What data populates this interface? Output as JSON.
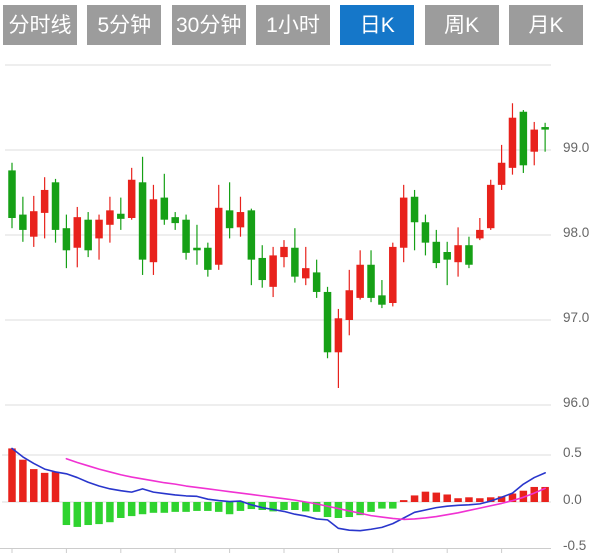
{
  "tabs": [
    {
      "label": "分时线",
      "active": false
    },
    {
      "label": "5分钟",
      "active": false
    },
    {
      "label": "30分钟",
      "active": false
    },
    {
      "label": "1小时",
      "active": false
    },
    {
      "label": "日K",
      "active": true
    },
    {
      "label": "周K",
      "active": false
    },
    {
      "label": "月K",
      "active": false
    }
  ],
  "colors": {
    "tab_bg": "#9c9c9c",
    "tab_active_bg": "#1577c9",
    "tab_text": "#ffffff",
    "bull_red": "#e8221c",
    "bear_green": "#16a016",
    "macd_up_red": "#e8221c",
    "macd_down_green": "#2fd32f",
    "dif_line_blue": "#2936cc",
    "dea_line_magenta": "#f032d2",
    "grid": "#dedede",
    "axis": "#cccccc",
    "axis_text": "#666666"
  },
  "chart_data": {
    "type": "candlestick",
    "title": "",
    "subchart": "MACD",
    "price_axis": {
      "labels": [
        "99.0",
        "98.0",
        "97.0",
        "96.0"
      ],
      "label_values": [
        99.0,
        98.0,
        97.0,
        96.0
      ],
      "gridline_values": [
        100.0,
        99.0,
        98.0,
        97.0,
        96.0
      ],
      "range": [
        95.85,
        100.12
      ],
      "side": "right"
    },
    "macd_axis": {
      "labels": [
        "0.5",
        "0.0",
        "-0.5"
      ],
      "label_values": [
        0.5,
        0.0,
        -0.5
      ],
      "gridline_values": [
        0.5,
        0.0
      ],
      "range": [
        -0.5,
        0.5
      ],
      "side": "right"
    },
    "candles": [
      {
        "o": 98.76,
        "h": 98.85,
        "l": 98.08,
        "c": 98.2,
        "dir": "down"
      },
      {
        "o": 98.24,
        "h": 98.45,
        "l": 97.92,
        "c": 98.06,
        "dir": "down"
      },
      {
        "o": 97.98,
        "h": 98.46,
        "l": 97.86,
        "c": 98.28,
        "dir": "up"
      },
      {
        "o": 98.26,
        "h": 98.68,
        "l": 97.96,
        "c": 98.53,
        "dir": "up"
      },
      {
        "o": 98.62,
        "h": 98.66,
        "l": 97.91,
        "c": 98.06,
        "dir": "down"
      },
      {
        "o": 98.08,
        "h": 98.24,
        "l": 97.61,
        "c": 97.82,
        "dir": "down"
      },
      {
        "o": 97.85,
        "h": 98.33,
        "l": 97.62,
        "c": 98.21,
        "dir": "up"
      },
      {
        "o": 98.18,
        "h": 98.27,
        "l": 97.74,
        "c": 97.82,
        "dir": "down"
      },
      {
        "o": 97.96,
        "h": 98.24,
        "l": 97.71,
        "c": 98.18,
        "dir": "up"
      },
      {
        "o": 98.12,
        "h": 98.45,
        "l": 97.91,
        "c": 98.29,
        "dir": "up"
      },
      {
        "o": 98.25,
        "h": 98.44,
        "l": 98.06,
        "c": 98.19,
        "dir": "down"
      },
      {
        "o": 98.2,
        "h": 98.79,
        "l": 98.18,
        "c": 98.65,
        "dir": "up"
      },
      {
        "o": 98.62,
        "h": 98.92,
        "l": 97.53,
        "c": 97.71,
        "dir": "down"
      },
      {
        "o": 97.68,
        "h": 98.59,
        "l": 97.53,
        "c": 98.42,
        "dir": "up"
      },
      {
        "o": 98.44,
        "h": 98.72,
        "l": 98.12,
        "c": 98.18,
        "dir": "down"
      },
      {
        "o": 98.21,
        "h": 98.27,
        "l": 98.06,
        "c": 98.14,
        "dir": "down"
      },
      {
        "o": 98.18,
        "h": 98.24,
        "l": 97.71,
        "c": 97.79,
        "dir": "down"
      },
      {
        "o": 97.85,
        "h": 98.12,
        "l": 97.65,
        "c": 97.82,
        "dir": "down"
      },
      {
        "o": 97.85,
        "h": 97.91,
        "l": 97.51,
        "c": 97.59,
        "dir": "down"
      },
      {
        "o": 97.65,
        "h": 98.59,
        "l": 97.59,
        "c": 98.32,
        "dir": "up"
      },
      {
        "o": 98.29,
        "h": 98.62,
        "l": 97.96,
        "c": 98.08,
        "dir": "down"
      },
      {
        "o": 98.09,
        "h": 98.45,
        "l": 97.98,
        "c": 98.27,
        "dir": "up"
      },
      {
        "o": 98.29,
        "h": 98.31,
        "l": 97.41,
        "c": 97.71,
        "dir": "down"
      },
      {
        "o": 97.73,
        "h": 97.88,
        "l": 97.38,
        "c": 97.47,
        "dir": "down"
      },
      {
        "o": 97.39,
        "h": 97.86,
        "l": 97.27,
        "c": 97.76,
        "dir": "up"
      },
      {
        "o": 97.74,
        "h": 97.94,
        "l": 97.62,
        "c": 97.86,
        "dir": "up"
      },
      {
        "o": 97.85,
        "h": 98.08,
        "l": 97.44,
        "c": 97.51,
        "dir": "down"
      },
      {
        "o": 97.49,
        "h": 97.86,
        "l": 97.41,
        "c": 97.61,
        "dir": "up"
      },
      {
        "o": 97.56,
        "h": 97.71,
        "l": 97.26,
        "c": 97.33,
        "dir": "down"
      },
      {
        "o": 97.33,
        "h": 97.39,
        "l": 96.55,
        "c": 96.62,
        "dir": "down"
      },
      {
        "o": 96.62,
        "h": 97.13,
        "l": 96.2,
        "c": 97.02,
        "dir": "up"
      },
      {
        "o": 97.0,
        "h": 97.59,
        "l": 96.82,
        "c": 97.35,
        "dir": "up"
      },
      {
        "o": 97.26,
        "h": 97.82,
        "l": 97.24,
        "c": 97.65,
        "dir": "up"
      },
      {
        "o": 97.65,
        "h": 97.82,
        "l": 97.21,
        "c": 97.26,
        "dir": "down"
      },
      {
        "o": 97.29,
        "h": 97.47,
        "l": 97.14,
        "c": 97.18,
        "dir": "down"
      },
      {
        "o": 97.2,
        "h": 97.91,
        "l": 97.16,
        "c": 97.86,
        "dir": "up"
      },
      {
        "o": 97.85,
        "h": 98.59,
        "l": 97.68,
        "c": 98.44,
        "dir": "up"
      },
      {
        "o": 98.45,
        "h": 98.53,
        "l": 97.82,
        "c": 98.15,
        "dir": "down"
      },
      {
        "o": 98.15,
        "h": 98.24,
        "l": 97.76,
        "c": 97.91,
        "dir": "down"
      },
      {
        "o": 97.92,
        "h": 98.06,
        "l": 97.61,
        "c": 97.67,
        "dir": "down"
      },
      {
        "o": 97.8,
        "h": 97.92,
        "l": 97.41,
        "c": 97.71,
        "dir": "down"
      },
      {
        "o": 97.68,
        "h": 98.09,
        "l": 97.51,
        "c": 97.88,
        "dir": "up"
      },
      {
        "o": 97.88,
        "h": 97.98,
        "l": 97.61,
        "c": 97.65,
        "dir": "down"
      },
      {
        "o": 97.96,
        "h": 98.2,
        "l": 97.94,
        "c": 98.06,
        "dir": "up"
      },
      {
        "o": 98.08,
        "h": 98.65,
        "l": 98.06,
        "c": 98.59,
        "dir": "up"
      },
      {
        "o": 98.59,
        "h": 99.06,
        "l": 98.53,
        "c": 98.85,
        "dir": "up"
      },
      {
        "o": 98.79,
        "h": 99.55,
        "l": 98.71,
        "c": 99.38,
        "dir": "up"
      },
      {
        "o": 99.45,
        "h": 99.47,
        "l": 98.73,
        "c": 98.82,
        "dir": "down"
      },
      {
        "o": 98.98,
        "h": 99.33,
        "l": 98.82,
        "c": 99.24,
        "dir": "up"
      },
      {
        "o": 99.27,
        "h": 99.32,
        "l": 98.98,
        "c": 99.24,
        "dir": "down"
      }
    ],
    "macd": {
      "histogram": [
        0.57,
        0.45,
        0.35,
        0.31,
        0.32,
        -0.245,
        -0.265,
        -0.245,
        -0.235,
        -0.215,
        -0.17,
        -0.15,
        -0.13,
        -0.115,
        -0.115,
        -0.105,
        -0.105,
        -0.095,
        -0.095,
        -0.105,
        -0.13,
        -0.095,
        -0.075,
        -0.085,
        -0.1,
        -0.085,
        -0.085,
        -0.1,
        -0.105,
        -0.16,
        -0.17,
        -0.16,
        -0.14,
        -0.105,
        -0.07,
        -0.07,
        0.02,
        0.07,
        0.11,
        0.1,
        0.08,
        0.04,
        0.05,
        0.04,
        0.05,
        0.06,
        0.09,
        0.12,
        0.16,
        0.16
      ],
      "dif": [
        0.57,
        0.48,
        0.41,
        0.35,
        0.32,
        0.3,
        0.26,
        0.21,
        0.17,
        0.14,
        0.12,
        0.105,
        0.14,
        0.105,
        0.09,
        0.075,
        0.065,
        0.06,
        0.03,
        0.015,
        0.005,
        0.01,
        -0.03,
        -0.06,
        -0.08,
        -0.1,
        -0.13,
        -0.15,
        -0.18,
        -0.19,
        -0.28,
        -0.3,
        -0.305,
        -0.29,
        -0.27,
        -0.23,
        -0.17,
        -0.11,
        -0.085,
        -0.06,
        -0.045,
        -0.035,
        -0.03,
        -0.02,
        0.01,
        0.05,
        0.095,
        0.19,
        0.26,
        0.31
      ],
      "dea": [
        null,
        null,
        null,
        null,
        null,
        0.46,
        0.42,
        0.385,
        0.35,
        0.32,
        0.29,
        0.265,
        0.245,
        0.225,
        0.205,
        0.19,
        0.17,
        0.155,
        0.14,
        0.125,
        0.11,
        0.095,
        0.08,
        0.065,
        0.05,
        0.035,
        0.02,
        0.0,
        -0.02,
        -0.045,
        -0.07,
        -0.095,
        -0.12,
        -0.145,
        -0.16,
        -0.175,
        -0.185,
        -0.18,
        -0.17,
        -0.155,
        -0.135,
        -0.115,
        -0.09,
        -0.065,
        -0.04,
        -0.015,
        0.015,
        0.05,
        0.095,
        0.145
      ]
    },
    "legend": "none",
    "grid": true
  }
}
